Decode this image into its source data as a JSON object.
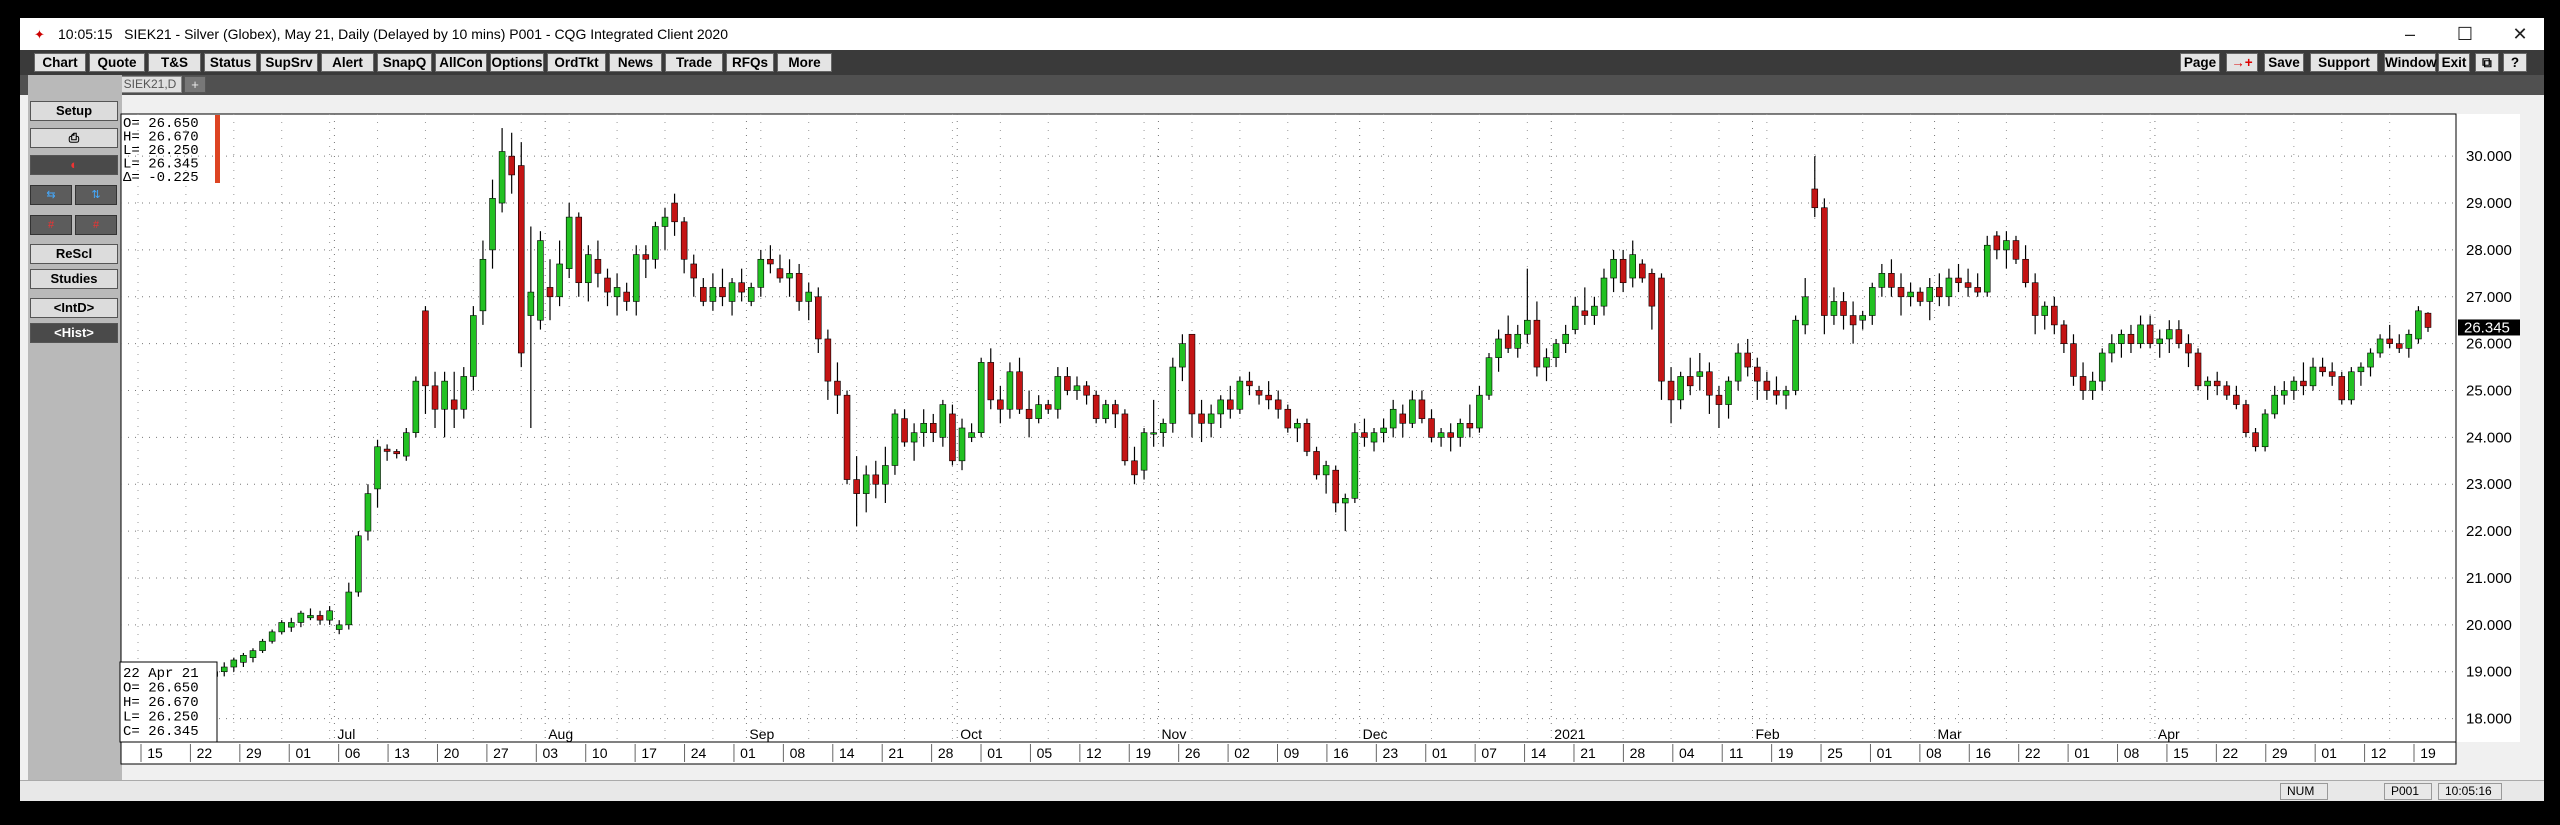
{
  "window": {
    "time": "10:05:15",
    "title": "SIEK21 - Silver (Globex), May 21, Daily (Delayed by 10 mins)   P001 - CQG Integrated Client 2020"
  },
  "menu": [
    "Chart",
    "Quote",
    "T&S",
    "Status",
    "SupSrv",
    "Alert",
    "SnapQ",
    "AllCon",
    "Options",
    "OrdTkt",
    "News",
    "Trade",
    "RFQs",
    "More"
  ],
  "menu_right": [
    "Page",
    "→+",
    "Save",
    "Support",
    "Window",
    "Exit",
    "⧉",
    "?"
  ],
  "tab": "SIEK21,D",
  "tab_add": "+",
  "left_panel": {
    "setup": "Setup",
    "print_icon": "⎙",
    "rescl": "ReScl",
    "studies": "Studies",
    "intd": "<IntD>",
    "hist": "<Hist>"
  },
  "ohlc_top": [
    "O= 26.650",
    "H= 26.670",
    "L= 26.250",
    "L= 26.345",
    "Δ= -0.225"
  ],
  "ohlc_box": [
    "22 Apr 21",
    "O=   26.650",
    "H=   26.670",
    "L=   26.250",
    "C=   26.345"
  ],
  "last_price": "26.345",
  "status": {
    "num": "NUM",
    "page": "P001",
    "time": "10:05:16"
  },
  "chart_data": {
    "type": "candlestick",
    "symbol": "SIEK21",
    "ylim": [
      17.5,
      30.9
    ],
    "yticks": [
      "18.000",
      "19.000",
      "20.000",
      "21.000",
      "22.000",
      "23.000",
      "24.000",
      "25.000",
      "26.000",
      "27.000",
      "28.000",
      "29.000",
      "30.000"
    ],
    "month_labels": [
      "Jul",
      "Aug",
      "Sep",
      "Oct",
      "Nov",
      "Dec",
      "2021",
      "Feb",
      "Mar",
      "Apr"
    ],
    "day_labels": [
      "15",
      "22",
      "29",
      "01",
      "06",
      "13",
      "20",
      "27",
      "03",
      "10",
      "17",
      "24",
      "01",
      "08",
      "14",
      "21",
      "28",
      "01",
      "05",
      "12",
      "19",
      "26",
      "02",
      "09",
      "16",
      "23",
      "01",
      "07",
      "14",
      "21",
      "28",
      "04",
      "11",
      "19",
      "25",
      "01",
      "08",
      "16",
      "22",
      "01",
      "08",
      "15",
      "22",
      "29",
      "01",
      "12",
      "19"
    ],
    "bars": [
      [
        18.3,
        18.4,
        18.2,
        18.35
      ],
      [
        18.35,
        18.5,
        18.25,
        18.4
      ],
      [
        18.4,
        18.6,
        18.3,
        18.55
      ],
      [
        18.5,
        18.7,
        18.45,
        18.55
      ],
      [
        18.6,
        18.7,
        18.5,
        18.65
      ],
      [
        18.6,
        18.8,
        18.55,
        18.75
      ],
      [
        18.7,
        19.0,
        18.6,
        18.9
      ],
      [
        18.85,
        19.0,
        18.75,
        18.95
      ],
      [
        18.9,
        19.05,
        18.85,
        19.0
      ],
      [
        19.0,
        19.2,
        18.9,
        19.1
      ],
      [
        19.1,
        19.3,
        19.0,
        19.25
      ],
      [
        19.2,
        19.4,
        19.1,
        19.35
      ],
      [
        19.3,
        19.5,
        19.2,
        19.45
      ],
      [
        19.45,
        19.7,
        19.4,
        19.65
      ],
      [
        19.65,
        19.9,
        19.6,
        19.85
      ],
      [
        19.85,
        20.1,
        19.8,
        20.05
      ],
      [
        19.95,
        20.15,
        19.85,
        20.05
      ],
      [
        20.05,
        20.3,
        19.95,
        20.25
      ],
      [
        20.15,
        20.35,
        20.1,
        20.2
      ],
      [
        20.2,
        20.3,
        20.0,
        20.1
      ],
      [
        20.1,
        20.4,
        20.0,
        20.3
      ],
      [
        19.9,
        20.1,
        19.8,
        20.0
      ],
      [
        20.0,
        20.9,
        19.9,
        20.7
      ],
      [
        20.7,
        22.0,
        20.6,
        21.9
      ],
      [
        22.0,
        23.0,
        21.8,
        22.8
      ],
      [
        22.9,
        23.95,
        22.5,
        23.8
      ],
      [
        23.75,
        23.85,
        23.5,
        23.7
      ],
      [
        23.7,
        23.75,
        23.55,
        23.65
      ],
      [
        23.6,
        24.2,
        23.5,
        24.1
      ],
      [
        24.1,
        25.3,
        24.0,
        25.2
      ],
      [
        26.7,
        26.8,
        24.5,
        25.1
      ],
      [
        25.1,
        25.4,
        24.2,
        24.6
      ],
      [
        24.6,
        25.4,
        24.0,
        25.2
      ],
      [
        24.8,
        25.4,
        24.2,
        24.6
      ],
      [
        24.6,
        25.5,
        24.4,
        25.3
      ],
      [
        25.3,
        26.8,
        25.0,
        26.6
      ],
      [
        26.7,
        28.2,
        26.4,
        27.8
      ],
      [
        28.0,
        29.5,
        27.6,
        29.1
      ],
      [
        29.0,
        30.6,
        28.8,
        30.1
      ],
      [
        30.0,
        30.5,
        29.2,
        29.6
      ],
      [
        29.8,
        30.3,
        25.5,
        25.8
      ],
      [
        26.6,
        28.5,
        24.2,
        27.1
      ],
      [
        26.5,
        28.4,
        26.3,
        28.2
      ],
      [
        27.2,
        27.8,
        26.5,
        27.0
      ],
      [
        27.0,
        28.2,
        26.8,
        27.7
      ],
      [
        27.6,
        29.0,
        27.4,
        28.7
      ],
      [
        28.7,
        28.8,
        27.0,
        27.3
      ],
      [
        27.3,
        28.1,
        26.9,
        27.9
      ],
      [
        27.8,
        28.2,
        27.2,
        27.5
      ],
      [
        27.4,
        27.6,
        26.8,
        27.1
      ],
      [
        27.0,
        27.5,
        26.6,
        27.2
      ],
      [
        27.1,
        27.3,
        26.7,
        26.9
      ],
      [
        26.9,
        28.1,
        26.6,
        27.9
      ],
      [
        27.9,
        28.1,
        27.4,
        27.8
      ],
      [
        27.8,
        28.6,
        27.6,
        28.5
      ],
      [
        28.5,
        28.9,
        28.0,
        28.7
      ],
      [
        29.0,
        29.2,
        28.3,
        28.6
      ],
      [
        28.6,
        28.7,
        27.5,
        27.8
      ],
      [
        27.7,
        27.9,
        27.0,
        27.4
      ],
      [
        27.2,
        27.4,
        26.8,
        26.9
      ],
      [
        26.9,
        27.5,
        26.7,
        27.2
      ],
      [
        27.2,
        27.6,
        26.8,
        27.0
      ],
      [
        26.9,
        27.4,
        26.6,
        27.3
      ],
      [
        27.3,
        27.6,
        26.9,
        27.1
      ],
      [
        26.9,
        27.3,
        26.8,
        27.2
      ],
      [
        27.2,
        28.0,
        27.0,
        27.8
      ],
      [
        27.8,
        28.1,
        27.5,
        27.7
      ],
      [
        27.6,
        27.9,
        27.3,
        27.4
      ],
      [
        27.4,
        27.8,
        27.0,
        27.5
      ],
      [
        27.5,
        27.7,
        26.7,
        26.9
      ],
      [
        26.9,
        27.3,
        26.5,
        27.1
      ],
      [
        27.0,
        27.2,
        25.8,
        26.1
      ],
      [
        26.1,
        26.3,
        24.8,
        25.2
      ],
      [
        25.2,
        25.6,
        24.5,
        24.9
      ],
      [
        24.9,
        25.0,
        23.0,
        23.1
      ],
      [
        23.1,
        23.6,
        22.1,
        22.8
      ],
      [
        22.8,
        23.4,
        22.4,
        23.2
      ],
      [
        23.2,
        23.5,
        22.7,
        23.0
      ],
      [
        23.0,
        23.8,
        22.6,
        23.4
      ],
      [
        23.4,
        24.6,
        23.2,
        24.5
      ],
      [
        24.4,
        24.6,
        23.8,
        23.9
      ],
      [
        23.9,
        24.3,
        23.5,
        24.1
      ],
      [
        24.1,
        24.6,
        23.8,
        24.3
      ],
      [
        24.3,
        24.5,
        23.9,
        24.1
      ],
      [
        24.0,
        24.8,
        23.8,
        24.7
      ],
      [
        24.5,
        24.7,
        23.4,
        23.5
      ],
      [
        23.5,
        24.4,
        23.3,
        24.2
      ],
      [
        24.0,
        24.3,
        23.9,
        24.1
      ],
      [
        24.1,
        25.7,
        24.0,
        25.6
      ],
      [
        25.6,
        25.9,
        24.6,
        24.8
      ],
      [
        24.8,
        25.1,
        24.3,
        24.6
      ],
      [
        24.6,
        25.6,
        24.4,
        25.4
      ],
      [
        25.4,
        25.7,
        24.5,
        24.6
      ],
      [
        24.6,
        25.0,
        24.0,
        24.4
      ],
      [
        24.4,
        24.9,
        24.3,
        24.7
      ],
      [
        24.7,
        24.8,
        24.5,
        24.6
      ],
      [
        24.6,
        25.5,
        24.4,
        25.3
      ],
      [
        25.3,
        25.5,
        24.9,
        25.0
      ],
      [
        25.0,
        25.3,
        24.8,
        25.1
      ],
      [
        25.1,
        25.2,
        24.7,
        24.9
      ],
      [
        24.9,
        25.0,
        24.3,
        24.4
      ],
      [
        24.4,
        24.8,
        24.3,
        24.7
      ],
      [
        24.7,
        24.8,
        24.2,
        24.5
      ],
      [
        24.5,
        24.6,
        23.4,
        23.5
      ],
      [
        23.5,
        23.8,
        23.0,
        23.2
      ],
      [
        23.3,
        24.2,
        23.1,
        24.1
      ],
      [
        24.1,
        24.8,
        23.8,
        24.1
      ],
      [
        24.1,
        24.4,
        23.8,
        24.3
      ],
      [
        24.3,
        25.7,
        24.1,
        25.5
      ],
      [
        25.5,
        26.2,
        25.2,
        26.0
      ],
      [
        26.2,
        26.2,
        24.0,
        24.5
      ],
      [
        24.5,
        24.8,
        23.9,
        24.3
      ],
      [
        24.3,
        24.7,
        24.0,
        24.5
      ],
      [
        24.5,
        24.9,
        24.2,
        24.8
      ],
      [
        24.8,
        25.1,
        24.4,
        24.6
      ],
      [
        24.6,
        25.3,
        24.5,
        25.2
      ],
      [
        25.2,
        25.4,
        24.9,
        25.1
      ],
      [
        25.0,
        25.1,
        24.7,
        24.9
      ],
      [
        24.9,
        25.2,
        24.6,
        24.8
      ],
      [
        24.8,
        25.0,
        24.4,
        24.6
      ],
      [
        24.6,
        24.7,
        24.1,
        24.2
      ],
      [
        24.2,
        24.4,
        23.9,
        24.3
      ],
      [
        24.3,
        24.4,
        23.6,
        23.7
      ],
      [
        23.7,
        23.8,
        23.1,
        23.2
      ],
      [
        23.2,
        23.5,
        22.8,
        23.4
      ],
      [
        23.3,
        23.4,
        22.4,
        22.6
      ],
      [
        22.6,
        22.8,
        22.0,
        22.7
      ],
      [
        22.7,
        24.3,
        22.6,
        24.1
      ],
      [
        24.1,
        24.4,
        23.8,
        24.0
      ],
      [
        23.9,
        24.2,
        23.7,
        24.1
      ],
      [
        24.1,
        24.4,
        23.9,
        24.2
      ],
      [
        24.2,
        24.8,
        24.0,
        24.6
      ],
      [
        24.5,
        24.7,
        24.0,
        24.3
      ],
      [
        24.3,
        25.0,
        24.2,
        24.8
      ],
      [
        24.8,
        25.0,
        24.3,
        24.4
      ],
      [
        24.4,
        24.6,
        23.9,
        24.0
      ],
      [
        24.0,
        24.2,
        23.8,
        24.1
      ],
      [
        24.1,
        24.3,
        23.7,
        24.0
      ],
      [
        24.0,
        24.4,
        23.8,
        24.3
      ],
      [
        24.3,
        24.7,
        24.0,
        24.2
      ],
      [
        24.2,
        25.1,
        24.1,
        24.9
      ],
      [
        24.9,
        25.8,
        24.8,
        25.7
      ],
      [
        25.7,
        26.3,
        25.4,
        26.1
      ],
      [
        26.2,
        26.6,
        25.8,
        25.9
      ],
      [
        25.9,
        26.4,
        25.7,
        26.2
      ],
      [
        26.2,
        27.6,
        26.0,
        26.5
      ],
      [
        26.5,
        26.9,
        25.3,
        25.5
      ],
      [
        25.5,
        25.9,
        25.2,
        25.7
      ],
      [
        25.7,
        26.1,
        25.5,
        26.0
      ],
      [
        26.0,
        26.4,
        25.8,
        26.2
      ],
      [
        26.3,
        27.0,
        26.2,
        26.8
      ],
      [
        26.7,
        27.2,
        26.4,
        26.6
      ],
      [
        26.6,
        27.0,
        26.4,
        26.8
      ],
      [
        26.8,
        27.6,
        26.6,
        27.4
      ],
      [
        27.4,
        28.0,
        27.1,
        27.8
      ],
      [
        27.8,
        28.0,
        27.1,
        27.3
      ],
      [
        27.4,
        28.2,
        27.2,
        27.9
      ],
      [
        27.7,
        27.8,
        27.3,
        27.4
      ],
      [
        27.5,
        27.6,
        26.3,
        26.8
      ],
      [
        27.4,
        27.5,
        24.8,
        25.2
      ],
      [
        25.2,
        25.5,
        24.3,
        24.8
      ],
      [
        24.8,
        25.4,
        24.6,
        25.3
      ],
      [
        25.3,
        25.7,
        24.9,
        25.1
      ],
      [
        25.3,
        25.8,
        25.0,
        25.4
      ],
      [
        25.4,
        25.6,
        24.5,
        24.9
      ],
      [
        24.9,
        25.1,
        24.2,
        24.7
      ],
      [
        24.7,
        25.3,
        24.4,
        25.2
      ],
      [
        25.2,
        26.0,
        25.0,
        25.8
      ],
      [
        25.8,
        26.1,
        25.3,
        25.5
      ],
      [
        25.5,
        25.7,
        24.8,
        25.2
      ],
      [
        25.2,
        25.4,
        24.8,
        25.0
      ],
      [
        25.0,
        25.3,
        24.7,
        24.9
      ],
      [
        24.9,
        25.1,
        24.6,
        25.0
      ],
      [
        25.0,
        26.6,
        24.9,
        26.5
      ],
      [
        26.4,
        27.4,
        26.2,
        27.0
      ],
      [
        29.3,
        30.0,
        28.7,
        28.9
      ],
      [
        28.9,
        29.1,
        26.2,
        26.6
      ],
      [
        26.6,
        27.2,
        26.4,
        26.9
      ],
      [
        26.9,
        27.1,
        26.3,
        26.6
      ],
      [
        26.6,
        26.9,
        26.0,
        26.4
      ],
      [
        26.5,
        26.7,
        26.3,
        26.6
      ],
      [
        26.6,
        27.3,
        26.4,
        27.2
      ],
      [
        27.2,
        27.7,
        27.0,
        27.5
      ],
      [
        27.5,
        27.8,
        27.0,
        27.2
      ],
      [
        27.2,
        27.5,
        26.6,
        27.0
      ],
      [
        27.0,
        27.3,
        26.8,
        27.1
      ],
      [
        27.1,
        27.2,
        26.8,
        26.9
      ],
      [
        26.9,
        27.4,
        26.5,
        27.2
      ],
      [
        27.2,
        27.5,
        26.8,
        27.0
      ],
      [
        27.0,
        27.6,
        26.8,
        27.4
      ],
      [
        27.4,
        27.7,
        27.1,
        27.3
      ],
      [
        27.3,
        27.6,
        27.0,
        27.2
      ],
      [
        27.2,
        27.5,
        27.0,
        27.1
      ],
      [
        27.1,
        28.3,
        27.0,
        28.1
      ],
      [
        28.3,
        28.4,
        27.8,
        28.0
      ],
      [
        28.0,
        28.4,
        27.6,
        28.2
      ],
      [
        28.2,
        28.3,
        27.7,
        27.8
      ],
      [
        27.8,
        28.1,
        27.2,
        27.3
      ],
      [
        27.3,
        27.5,
        26.2,
        26.6
      ],
      [
        26.6,
        26.9,
        26.3,
        26.8
      ],
      [
        26.8,
        27.0,
        26.2,
        26.4
      ],
      [
        26.4,
        26.5,
        25.8,
        26.0
      ],
      [
        26.0,
        26.2,
        25.1,
        25.3
      ],
      [
        25.3,
        25.6,
        24.8,
        25.0
      ],
      [
        25.0,
        25.4,
        24.8,
        25.2
      ],
      [
        25.2,
        25.9,
        25.0,
        25.8
      ],
      [
        25.8,
        26.2,
        25.6,
        26.0
      ],
      [
        26.0,
        26.3,
        25.7,
        26.2
      ],
      [
        26.2,
        26.4,
        25.8,
        26.0
      ],
      [
        26.0,
        26.6,
        25.9,
        26.4
      ],
      [
        26.4,
        26.6,
        25.9,
        26.0
      ],
      [
        26.0,
        26.3,
        25.7,
        26.1
      ],
      [
        26.1,
        26.5,
        25.8,
        26.3
      ],
      [
        26.3,
        26.5,
        25.9,
        26.0
      ],
      [
        26.0,
        26.2,
        25.5,
        25.8
      ],
      [
        25.8,
        25.9,
        25.0,
        25.1
      ],
      [
        25.1,
        25.3,
        24.8,
        25.2
      ],
      [
        25.2,
        25.4,
        24.9,
        25.1
      ],
      [
        25.1,
        25.2,
        24.8,
        24.9
      ],
      [
        24.9,
        25.1,
        24.6,
        24.7
      ],
      [
        24.7,
        24.8,
        24.0,
        24.1
      ],
      [
        24.1,
        24.2,
        23.7,
        23.8
      ],
      [
        23.8,
        24.6,
        23.7,
        24.5
      ],
      [
        24.5,
        25.1,
        24.4,
        24.9
      ],
      [
        24.9,
        25.2,
        24.7,
        25.0
      ],
      [
        25.0,
        25.3,
        24.8,
        25.2
      ],
      [
        25.2,
        25.6,
        24.9,
        25.1
      ],
      [
        25.1,
        25.7,
        25.0,
        25.5
      ],
      [
        25.5,
        25.7,
        25.3,
        25.4
      ],
      [
        25.4,
        25.6,
        25.1,
        25.3
      ],
      [
        25.3,
        25.4,
        24.7,
        24.8
      ],
      [
        24.8,
        25.5,
        24.7,
        25.4
      ],
      [
        25.4,
        25.6,
        25.1,
        25.5
      ],
      [
        25.5,
        25.9,
        25.3,
        25.8
      ],
      [
        25.8,
        26.2,
        25.7,
        26.1
      ],
      [
        26.1,
        26.4,
        25.9,
        26.0
      ],
      [
        26.0,
        26.2,
        25.8,
        25.9
      ],
      [
        25.9,
        26.3,
        25.7,
        26.2
      ],
      [
        26.1,
        26.8,
        26.0,
        26.7
      ],
      [
        26.65,
        26.67,
        26.25,
        26.345
      ]
    ]
  }
}
